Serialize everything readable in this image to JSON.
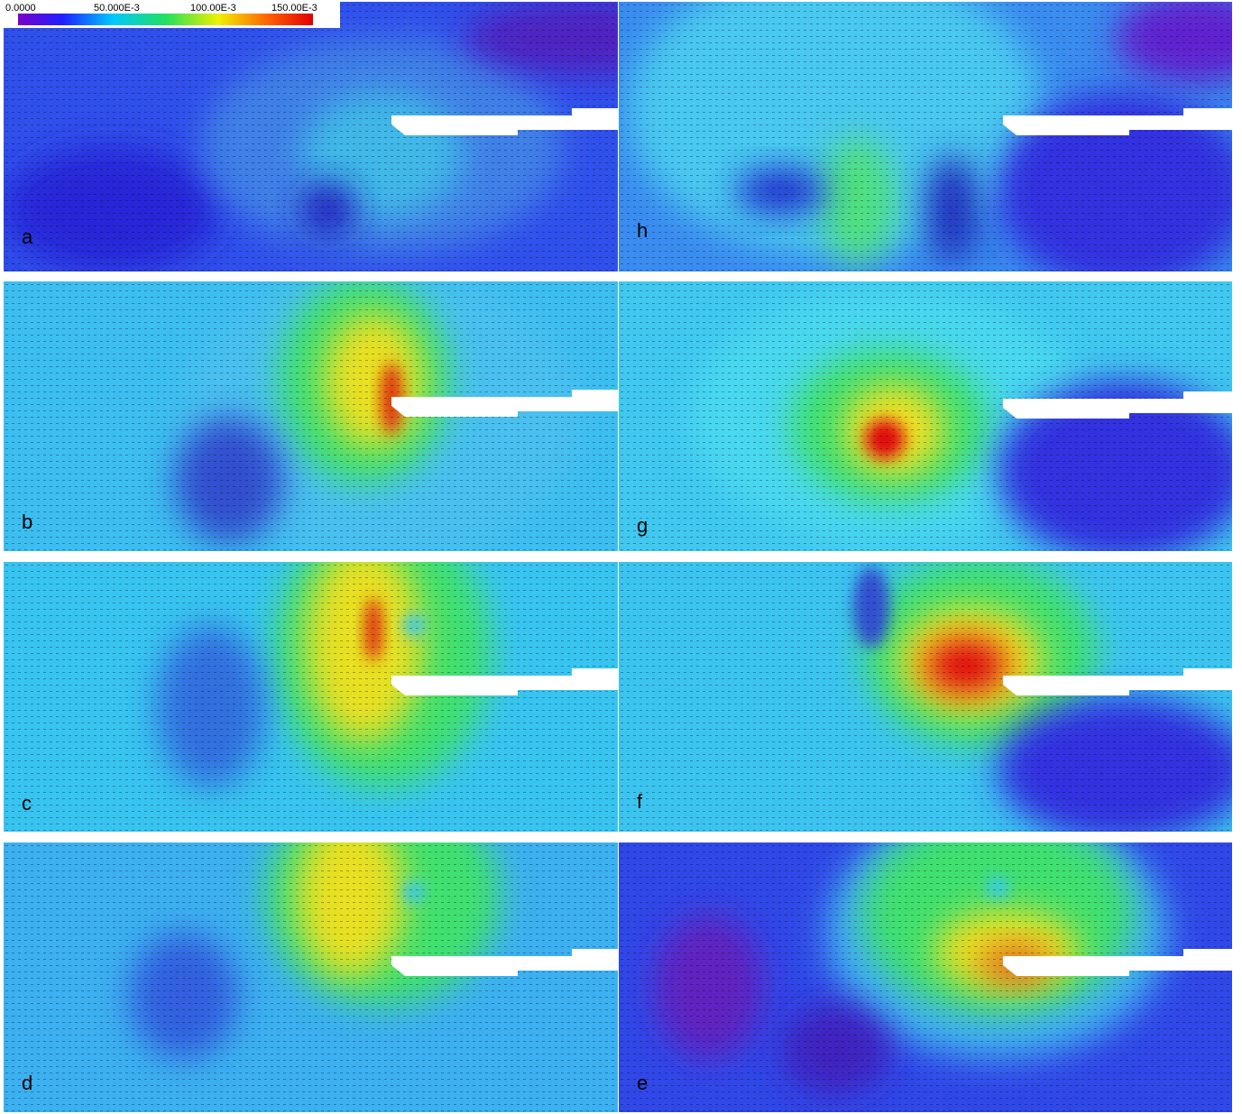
{
  "colorbar": {
    "labels": [
      "0.0000",
      "50.000E-3",
      "100.00E-3",
      "150.00E-3"
    ]
  },
  "panels": [
    {
      "label": "a"
    },
    {
      "label": "h"
    },
    {
      "label": "b"
    },
    {
      "label": "g"
    },
    {
      "label": "c"
    },
    {
      "label": "f"
    },
    {
      "label": "d"
    },
    {
      "label": "e"
    }
  ]
}
